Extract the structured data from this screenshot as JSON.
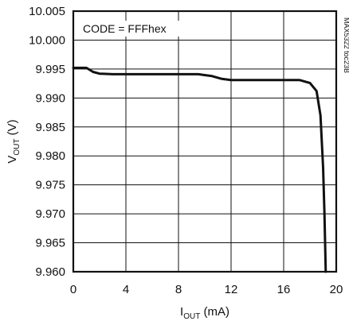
{
  "chart_data": {
    "type": "line",
    "annotation": "CODE = FFFhex",
    "side_label": "MAX5322 toc23B",
    "xlabel": {
      "main": "I",
      "sub": "OUT",
      "rest": " (mA)"
    },
    "ylabel": {
      "main": "V",
      "sub": "OUT",
      "rest": " (V)"
    },
    "xlim": [
      0,
      20
    ],
    "ylim": [
      9.96,
      10.005
    ],
    "x_ticks": [
      0,
      4,
      8,
      12,
      16,
      20
    ],
    "y_ticks": [
      10.005,
      10.0,
      9.995,
      9.99,
      9.985,
      9.98,
      9.975,
      9.97,
      9.965,
      9.96
    ],
    "x_tick_labels": [
      "0",
      "4",
      "8",
      "12",
      "16",
      "20"
    ],
    "y_tick_labels": [
      "10.005",
      "10.000",
      "9.995",
      "9.990",
      "9.985",
      "9.980",
      "9.975",
      "9.970",
      "9.965",
      "9.960"
    ],
    "grid": true,
    "series": [
      {
        "points": [
          [
            0,
            9.9952
          ],
          [
            0.5,
            9.9952
          ],
          [
            1.0,
            9.9952
          ],
          [
            1.5,
            9.9945
          ],
          [
            2.0,
            9.9942
          ],
          [
            3,
            9.9941
          ],
          [
            4,
            9.9941
          ],
          [
            6,
            9.9941
          ],
          [
            8,
            9.9941
          ],
          [
            9.5,
            9.9941
          ],
          [
            10.5,
            9.9938
          ],
          [
            11.3,
            9.9933
          ],
          [
            12,
            9.9931
          ],
          [
            14,
            9.9931
          ],
          [
            16,
            9.9931
          ],
          [
            17.2,
            9.9931
          ],
          [
            18.0,
            9.9926
          ],
          [
            18.5,
            9.9912
          ],
          [
            18.8,
            9.987
          ],
          [
            19.0,
            9.978
          ],
          [
            19.1,
            9.97
          ],
          [
            19.2,
            9.96
          ]
        ]
      }
    ]
  }
}
